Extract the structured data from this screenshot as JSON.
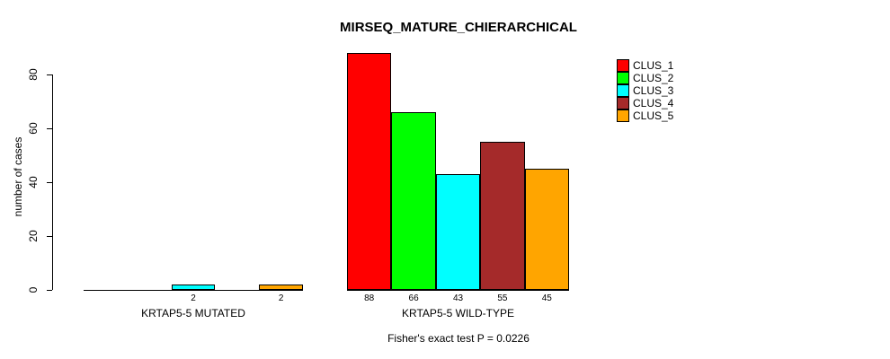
{
  "title": "MIRSEQ_MATURE_CHIERARCHICAL",
  "y_axis": {
    "label": "number of cases",
    "ticks": [
      0,
      20,
      40,
      60,
      80
    ]
  },
  "footer": "Fisher's exact test P = 0.0226",
  "legend": {
    "items": [
      {
        "label": "CLUS_1",
        "color": "#FF0000"
      },
      {
        "label": "CLUS_2",
        "color": "#00FF00"
      },
      {
        "label": "CLUS_3",
        "color": "#00FFFF"
      },
      {
        "label": "CLUS_4",
        "color": "#A52A2A"
      },
      {
        "label": "CLUS_5",
        "color": "#FFA500"
      }
    ]
  },
  "chart_data": {
    "type": "bar",
    "title": "MIRSEQ_MATURE_CHIERARCHICAL",
    "xlabel": "",
    "ylabel": "number of cases",
    "ylim": [
      0,
      88
    ],
    "yticks": [
      0,
      20,
      40,
      60,
      80
    ],
    "grid": false,
    "legend_position": "top-right",
    "categories": [
      "KRTAP5-5 MUTATED",
      "KRTAP5-5 WILD-TYPE"
    ],
    "series": [
      {
        "name": "CLUS_1",
        "color": "#FF0000",
        "values": [
          0,
          88
        ]
      },
      {
        "name": "CLUS_2",
        "color": "#00FF00",
        "values": [
          0,
          66
        ]
      },
      {
        "name": "CLUS_3",
        "color": "#00FFFF",
        "values": [
          2,
          43
        ]
      },
      {
        "name": "CLUS_4",
        "color": "#A52A2A",
        "values": [
          0,
          55
        ]
      },
      {
        "name": "CLUS_5",
        "color": "#FFA500",
        "values": [
          2,
          45
        ]
      }
    ],
    "bar_value_labels": {
      "KRTAP5-5 MUTATED": [
        "",
        "",
        "2",
        "",
        "2"
      ],
      "KRTAP5-5 WILD-TYPE": [
        "88",
        "66",
        "43",
        "55",
        "45"
      ]
    },
    "annotation": "Fisher's exact test P = 0.0226"
  }
}
